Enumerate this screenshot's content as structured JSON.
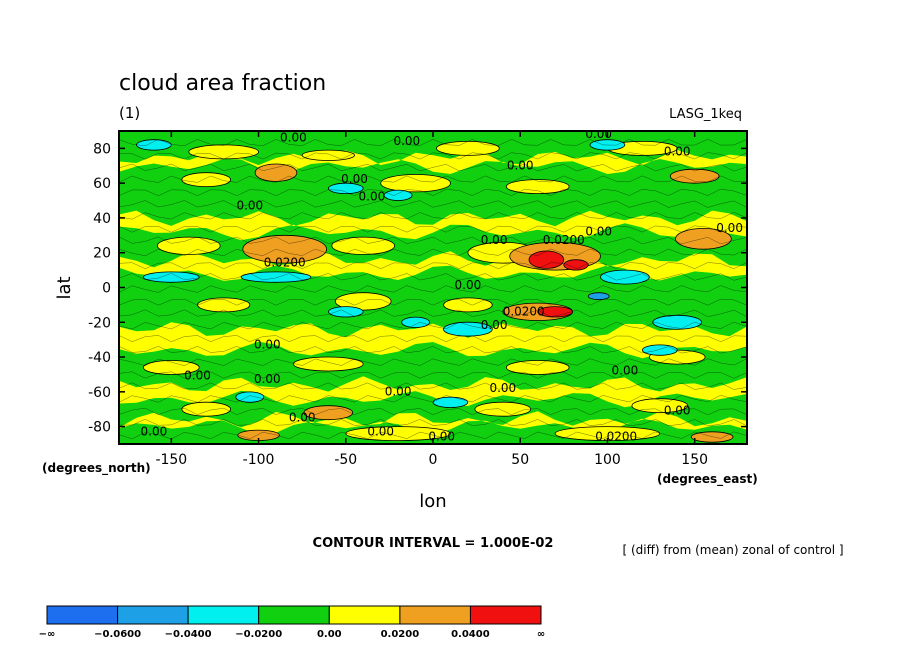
{
  "chart_data": {
    "type": "heatmap",
    "title": "cloud area fraction",
    "subtitle": "(1)",
    "model_label": "LASG_1keq",
    "xlabel": "lon",
    "ylabel": "lat",
    "x_units": "(degrees_east)",
    "y_units": "(degrees_north)",
    "xlim": [
      -180,
      180
    ],
    "ylim": [
      -90,
      90
    ],
    "x_ticks": [
      -150,
      -100,
      -50,
      0,
      50,
      100,
      150
    ],
    "y_ticks": [
      80,
      60,
      40,
      20,
      0,
      -20,
      -40,
      -60,
      -80
    ],
    "contour_interval_text": "CONTOUR INTERVAL = 1.000E-02",
    "description_text": "[ (diff) from (mean) zonal of control ]",
    "contour_labels": [
      {
        "text": "0.00",
        "lon": -80,
        "lat": 84
      },
      {
        "text": "0.00",
        "lon": -15,
        "lat": 82
      },
      {
        "text": "0.00",
        "lon": 95,
        "lat": 86
      },
      {
        "text": "0.00",
        "lon": 140,
        "lat": 76
      },
      {
        "text": "0.00",
        "lon": 50,
        "lat": 68
      },
      {
        "text": "0.00",
        "lon": -45,
        "lat": 60
      },
      {
        "text": "0.00",
        "lon": -35,
        "lat": 50
      },
      {
        "text": "0.00",
        "lon": -105,
        "lat": 45
      },
      {
        "text": "0.00",
        "lon": 35,
        "lat": 25
      },
      {
        "text": "0.0200",
        "lon": 75,
        "lat": 25
      },
      {
        "text": "0.00",
        "lon": 95,
        "lat": 30
      },
      {
        "text": "0.00",
        "lon": 170,
        "lat": 32
      },
      {
        "text": "0.0200",
        "lon": -85,
        "lat": 12
      },
      {
        "text": "0.00",
        "lon": 20,
        "lat": -1
      },
      {
        "text": "0.00",
        "lon": 35,
        "lat": -24
      },
      {
        "text": "0.0200",
        "lon": 52,
        "lat": -16
      },
      {
        "text": "0.00",
        "lon": -95,
        "lat": -35
      },
      {
        "text": "0.00",
        "lon": -135,
        "lat": -53
      },
      {
        "text": "0.00",
        "lon": -95,
        "lat": -55
      },
      {
        "text": "0.00",
        "lon": 110,
        "lat": -50
      },
      {
        "text": "0.00",
        "lon": -20,
        "lat": -62
      },
      {
        "text": "0.00",
        "lon": 40,
        "lat": -60
      },
      {
        "text": "0.00",
        "lon": 140,
        "lat": -73
      },
      {
        "text": "0.00",
        "lon": -75,
        "lat": -77
      },
      {
        "text": "0.00",
        "lon": -30,
        "lat": -85
      },
      {
        "text": "0.00",
        "lon": 5,
        "lat": -88
      },
      {
        "text": "0.0200",
        "lon": 105,
        "lat": -88
      },
      {
        "text": "0.00",
        "lon": -160,
        "lat": -85
      }
    ],
    "legend": {
      "boundaries": [
        "−∞",
        "−0.0600",
        "−0.0400",
        "−0.0200",
        "0.00",
        "0.0200",
        "0.0400",
        "∞"
      ],
      "colors": [
        "#1e6ef0",
        "#1ea0e6",
        "#00f0f0",
        "#10d010",
        "#ffff00",
        "#f0a020",
        "#f01010"
      ]
    },
    "colors": {
      "lt_m06": "#1e6ef0",
      "m06_m04": "#1ea0e6",
      "m04_m02": "#00f0f0",
      "m02_0": "#10d010",
      "0_p02": "#ffff00",
      "p02_p04": "#f0a020",
      "gt_p04": "#f01010"
    }
  }
}
